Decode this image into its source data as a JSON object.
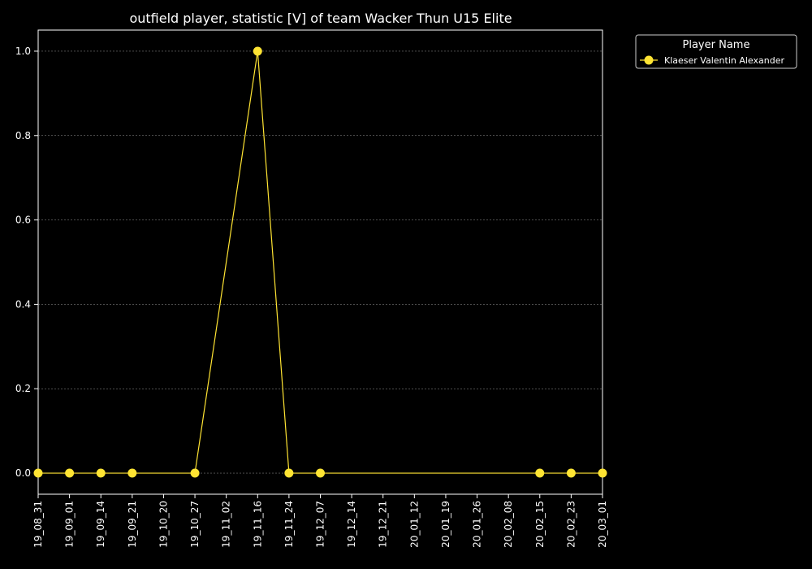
{
  "chart_data": {
    "type": "line",
    "title": "outfield player, statistic [V] of team Wacker Thun U15 Elite",
    "xlabel": "",
    "ylabel": "",
    "categories": [
      "19_08_31",
      "19_09_01",
      "19_09_14",
      "19_09_21",
      "19_10_20",
      "19_10_27",
      "19_11_02",
      "19_11_16",
      "19_11_24",
      "19_12_07",
      "19_12_14",
      "19_12_21",
      "20_01_12",
      "20_01_19",
      "20_01_26",
      "20_02_08",
      "20_02_15",
      "20_02_23",
      "20_03_01"
    ],
    "ylim": [
      -0.05,
      1.05
    ],
    "yticks": [
      0.0,
      0.2,
      0.4,
      0.6,
      0.8,
      1.0
    ],
    "ytick_labels": [
      "0.0",
      "0.2",
      "0.4",
      "0.6",
      "0.8",
      "1.0"
    ],
    "grid": true,
    "legend": {
      "title": "Player Name",
      "placement": "outside-top-right"
    },
    "series": [
      {
        "name": "Klaeser Valentin Alexander",
        "color": "#ffe433",
        "values": [
          0,
          0,
          0,
          0,
          null,
          0,
          null,
          1,
          0,
          0,
          null,
          null,
          null,
          null,
          null,
          null,
          0,
          0,
          0
        ]
      }
    ]
  }
}
